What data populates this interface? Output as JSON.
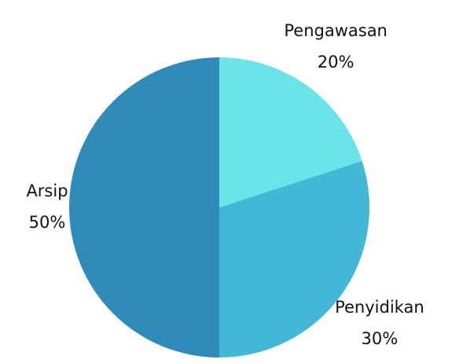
{
  "chart_data": {
    "type": "pie",
    "categories": [
      "Pengawasan",
      "Penyidikan",
      "Arsip"
    ],
    "values": [
      20,
      30,
      50
    ],
    "value_labels": [
      "20%",
      "30%",
      "50%"
    ],
    "colors": [
      "#6ae4e9",
      "#42b7d6",
      "#2e8bba"
    ]
  }
}
